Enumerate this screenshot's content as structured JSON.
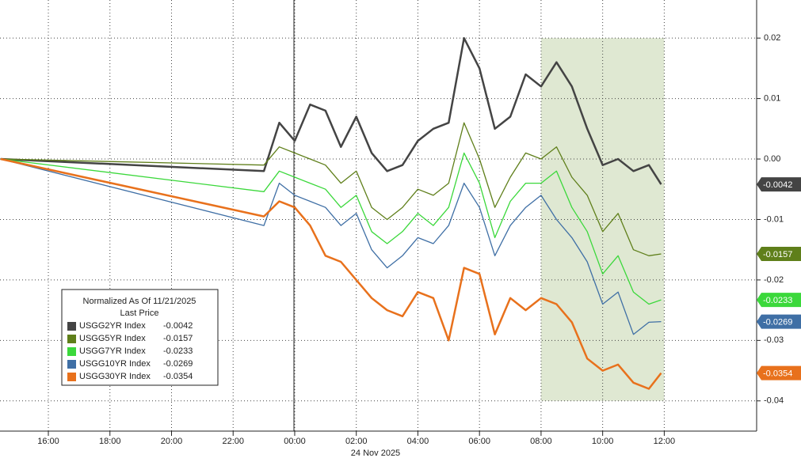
{
  "chart_data": {
    "type": "line",
    "x": [
      14.45,
      23,
      23.5,
      24,
      24.5,
      25,
      25.5,
      26,
      26.5,
      27,
      27.5,
      28,
      28.5,
      29,
      29.5,
      30,
      30.5,
      31,
      31.5,
      32,
      32.5,
      33,
      33.5,
      34,
      34.5,
      35,
      35.5,
      35.9
    ],
    "series": [
      {
        "name": "USGG2YR Index",
        "last_price": -0.0042,
        "color": "#444444",
        "values": [
          0,
          -0.002,
          0.006,
          0.003,
          0.009,
          0.008,
          0.002,
          0.007,
          0.001,
          -0.002,
          -0.001,
          0.003,
          0.005,
          0.006,
          0.02,
          0.015,
          0.005,
          0.007,
          0.014,
          0.012,
          0.016,
          0.012,
          0.005,
          -0.001,
          0,
          -0.002,
          -0.001,
          -0.0042
        ]
      },
      {
        "name": "USGG5YR Index",
        "last_price": -0.0157,
        "color": "#5f7f1a",
        "values": [
          0,
          -0.001,
          0.002,
          0.001,
          0,
          -0.001,
          -0.004,
          -0.002,
          -0.008,
          -0.01,
          -0.008,
          -0.005,
          -0.006,
          -0.004,
          0.006,
          0,
          -0.008,
          -0.003,
          0.001,
          0,
          0.002,
          -0.003,
          -0.006,
          -0.012,
          -0.009,
          -0.015,
          -0.016,
          -0.0157
        ]
      },
      {
        "name": "USGG7YR Index",
        "last_price": -0.0233,
        "color": "#3bd83b",
        "values": [
          0,
          -0.0054,
          -0.002,
          -0.003,
          -0.004,
          -0.005,
          -0.008,
          -0.006,
          -0.012,
          -0.014,
          -0.012,
          -0.009,
          -0.011,
          -0.008,
          0.001,
          -0.004,
          -0.013,
          -0.007,
          -0.004,
          -0.004,
          -0.002,
          -0.008,
          -0.012,
          -0.019,
          -0.016,
          -0.022,
          -0.024,
          -0.0233
        ]
      },
      {
        "name": "USGG10YR Index",
        "last_price": -0.0269,
        "color": "#3f6fa5",
        "values": [
          0,
          -0.011,
          -0.004,
          -0.006,
          -0.007,
          -0.008,
          -0.011,
          -0.009,
          -0.015,
          -0.018,
          -0.016,
          -0.013,
          -0.014,
          -0.011,
          -0.004,
          -0.008,
          -0.016,
          -0.011,
          -0.008,
          -0.006,
          -0.01,
          -0.013,
          -0.017,
          -0.024,
          -0.022,
          -0.029,
          -0.027,
          -0.0269
        ]
      },
      {
        "name": "USGG30YR Index",
        "last_price": -0.0354,
        "color": "#e8711c",
        "values": [
          0,
          -0.0095,
          -0.007,
          -0.008,
          -0.011,
          -0.016,
          -0.017,
          -0.02,
          -0.023,
          -0.025,
          -0.026,
          -0.022,
          -0.023,
          -0.03,
          -0.018,
          -0.019,
          -0.029,
          -0.023,
          -0.025,
          -0.023,
          -0.024,
          -0.027,
          -0.033,
          -0.035,
          -0.034,
          -0.037,
          -0.038,
          -0.0354
        ]
      }
    ],
    "xlim": [
      14.43,
      39
    ],
    "xticks": [
      {
        "value": 16,
        "label": "16:00"
      },
      {
        "value": 18,
        "label": "18:00"
      },
      {
        "value": 20,
        "label": "20:00"
      },
      {
        "value": 22,
        "label": "22:00"
      },
      {
        "value": 24,
        "label": "00:00"
      },
      {
        "value": 26,
        "label": "02:00"
      },
      {
        "value": 28,
        "label": "04:00"
      },
      {
        "value": 30,
        "label": "06:00"
      },
      {
        "value": 32,
        "label": "08:00"
      },
      {
        "value": 34,
        "label": "10:00"
      },
      {
        "value": 36,
        "label": "12:00"
      }
    ],
    "date_label": "24 Nov 2025",
    "ylim": [
      -0.045,
      0.0263
    ],
    "yticks": [
      0.02,
      0.01,
      {
        "value": 0,
        "label": "0.00"
      },
      -0.01,
      -0.02,
      -0.03,
      -0.04
    ],
    "grid": true,
    "shaded_region": {
      "x": [
        32,
        36
      ],
      "y": [
        -0.04,
        0.02
      ],
      "color": "#dfe8d2"
    },
    "legend": {
      "title": "Normalized As Of 11/21/2025",
      "subtitle": "Last Price",
      "position": "lower left"
    }
  }
}
